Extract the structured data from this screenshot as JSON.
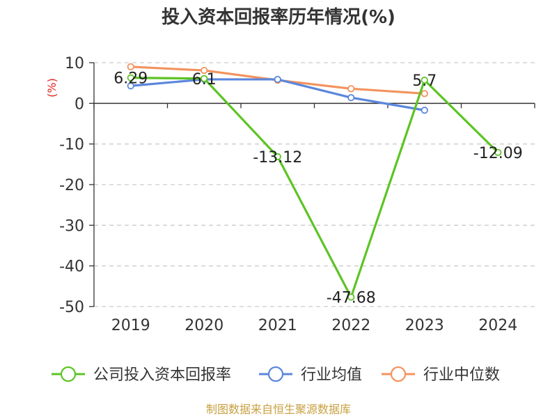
{
  "chart_data": {
    "type": "line",
    "title": "投入资本回报率历年情况(%)",
    "ylabel": "(%)",
    "categories": [
      "2019",
      "2020",
      "2021",
      "2022",
      "2023",
      "2024"
    ],
    "ylim": [
      -50,
      10
    ],
    "yticks": [
      10,
      0,
      -10,
      -20,
      -30,
      -40,
      -50
    ],
    "grid": true,
    "legend_position": "bottom",
    "series": [
      {
        "name": "公司投入资本回报率",
        "color": "#5cc424",
        "values": [
          6.29,
          6.1,
          -13.12,
          -47.68,
          5.7,
          -12.09
        ],
        "labels": [
          "6.29",
          "6.1",
          "-13.12",
          "-47.68",
          "5.7",
          "-12.09"
        ]
      },
      {
        "name": "行业均值",
        "color": "#5b86dc",
        "values": [
          4.3,
          5.9,
          5.9,
          1.4,
          -1.7,
          null
        ]
      },
      {
        "name": "行业中位数",
        "color": "#f3935e",
        "values": [
          9.0,
          8.1,
          5.7,
          3.6,
          2.4,
          null
        ]
      }
    ]
  },
  "footer": {
    "source": "制图数据来自恒生聚源数据库"
  }
}
